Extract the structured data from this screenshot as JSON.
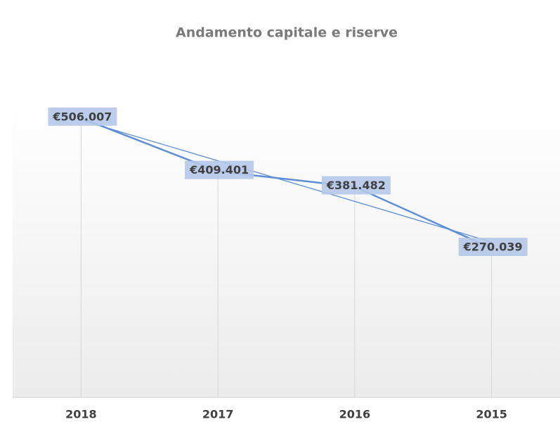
{
  "chart_data": {
    "type": "line",
    "title": "Andamento capitale e riserve",
    "categories": [
      "2018",
      "2017",
      "2016",
      "2015"
    ],
    "values": [
      506007,
      409401,
      381482,
      270039
    ],
    "value_labels": [
      "€506.007",
      "€409.401",
      "€381.482",
      "€270.039"
    ],
    "color": "#5b8ed6",
    "label_color": "#b4c8e8",
    "trendline": "linear",
    "drop_lines": true,
    "ylim": [
      0,
      600000
    ]
  }
}
